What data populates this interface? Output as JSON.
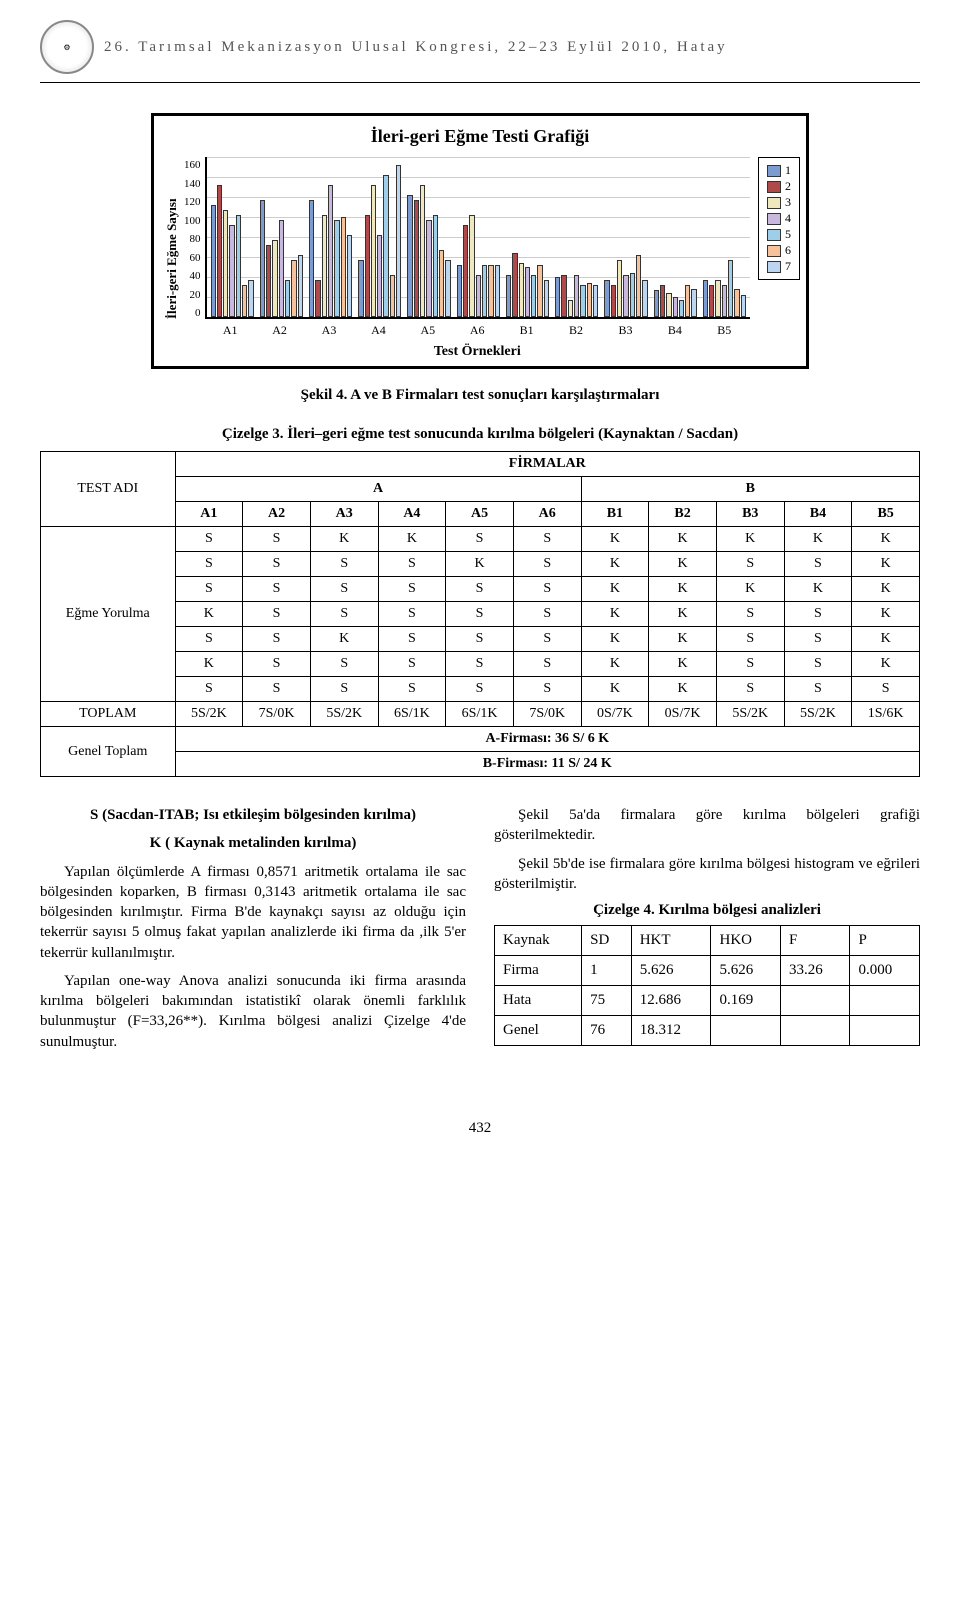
{
  "header": {
    "title": "26. Tarımsal Mekanizasyon Ulusal Kongresi, 22–23 Eylül 2010, Hatay"
  },
  "chart": {
    "type": "grouped-bar",
    "title": "İleri-geri Eğme Testi Grafiği",
    "ylabel": "İleri-geri Eğme Sayısı",
    "xlabel": "Test Örnekleri",
    "ylim": [
      0,
      160
    ],
    "ytick_step": 20,
    "yticks": [
      "160",
      "140",
      "120",
      "100",
      "80",
      "60",
      "40",
      "20",
      "0"
    ],
    "categories": [
      "A1",
      "A2",
      "A3",
      "A4",
      "A5",
      "A6",
      "B1",
      "B2",
      "B3",
      "B4",
      "B5"
    ],
    "series_labels": [
      "1",
      "2",
      "3",
      "4",
      "5",
      "6",
      "7"
    ],
    "series_colors": [
      "#7b9bd1",
      "#b04a4a",
      "#efe7bd",
      "#c8b8dd",
      "#9fcfe8",
      "#f5c29b",
      "#bcd6f2"
    ],
    "values": [
      [
        110,
        130,
        105,
        90,
        100,
        30,
        35
      ],
      [
        115,
        70,
        75,
        95,
        35,
        55,
        60
      ],
      [
        115,
        35,
        100,
        130,
        95,
        98,
        80
      ],
      [
        55,
        100,
        130,
        80,
        140,
        40,
        150
      ],
      [
        120,
        115,
        130,
        95,
        100,
        65,
        55
      ],
      [
        50,
        90,
        100,
        40,
        50,
        50,
        50
      ],
      [
        40,
        62,
        52,
        48,
        40,
        50,
        35
      ],
      [
        38,
        40,
        15,
        40,
        30,
        32,
        30
      ],
      [
        35,
        30,
        55,
        40,
        42,
        60,
        35
      ],
      [
        25,
        30,
        22,
        18,
        15,
        30,
        26
      ],
      [
        35,
        30,
        35,
        30,
        55,
        26,
        20
      ]
    ],
    "grid_color": "#cccccc",
    "background_color": "#ffffff",
    "border_color": "#000000"
  },
  "figure_caption": "Şekil 4. A ve B Firmaları test sonuçları karşılaştırmaları",
  "table_caption": "Çizelge 3. İleri–geri eğme test sonucunda kırılma bölgeleri (Kaynaktan / Sacdan)",
  "main_table": {
    "top_header": "FİRMALAR",
    "group_headers": [
      "A",
      "B"
    ],
    "row_label": "TEST ADI",
    "cols": [
      "A1",
      "A2",
      "A3",
      "A4",
      "A5",
      "A6",
      "B1",
      "B2",
      "B3",
      "B4",
      "B5"
    ],
    "row_group_label": "Eğme Yorulma",
    "rows": [
      [
        "S",
        "S",
        "K",
        "K",
        "S",
        "S",
        "K",
        "K",
        "K",
        "K",
        "K"
      ],
      [
        "S",
        "S",
        "S",
        "S",
        "K",
        "S",
        "K",
        "K",
        "S",
        "S",
        "K"
      ],
      [
        "S",
        "S",
        "S",
        "S",
        "S",
        "S",
        "K",
        "K",
        "K",
        "K",
        "K"
      ],
      [
        "K",
        "S",
        "S",
        "S",
        "S",
        "S",
        "K",
        "K",
        "S",
        "S",
        "K"
      ],
      [
        "S",
        "S",
        "K",
        "S",
        "S",
        "S",
        "K",
        "K",
        "S",
        "S",
        "K"
      ],
      [
        "K",
        "S",
        "S",
        "S",
        "S",
        "S",
        "K",
        "K",
        "S",
        "S",
        "K"
      ],
      [
        "S",
        "S",
        "S",
        "S",
        "S",
        "S",
        "K",
        "K",
        "S",
        "S",
        "S"
      ]
    ],
    "toplam_label": "TOPLAM",
    "toplam": [
      "5S/2K",
      "7S/0K",
      "5S/2K",
      "6S/1K",
      "6S/1K",
      "7S/0K",
      "0S/7K",
      "0S/7K",
      "5S/2K",
      "5S/2K",
      "1S/6K"
    ],
    "genel_label": "Genel Toplam",
    "genel_a": "A-Firması: 36 S/ 6 K",
    "genel_b": "B-Firması: 11 S/ 24 K"
  },
  "left_col": {
    "head1": "S (Sacdan-ITAB; Isı etkileşim bölgesinden kırılma)",
    "head2": "K ( Kaynak metalinden kırılma)",
    "p1": "Yapılan ölçümlerde A firması 0,8571 aritmetik ortalama ile sac bölgesinden koparken, B firması 0,3143 aritmetik ortalama ile sac bölgesinden kırılmıştır. Firma B'de kaynakçı sayısı az olduğu için tekerrür sayısı 5 olmuş fakat yapılan analizlerde iki firma da ,ilk 5'er tekerrür kullanılmıştır.",
    "p2": "Yapılan one-way Anova analizi sonucunda iki firma arasında kırılma bölgeleri bakımından istatistikî olarak önemli farklılık bulunmuştur (F=33,26**). Kırılma bölgesi analizi Çizelge 4'de sunulmuştur."
  },
  "right_col": {
    "p1": "Şekil 5a'da firmalara göre kırılma bölgeleri grafiği gösterilmektedir.",
    "p2": "Şekil 5b'de ise firmalara göre kırılma bölgesi histogram ve eğrileri gösterilmiştir.",
    "small_caption": "Çizelge 4. Kırılma bölgesi analizleri",
    "small_headers": [
      "Kaynak",
      "SD",
      "HKT",
      "HKO",
      "F",
      "P"
    ],
    "small_rows": [
      [
        "Firma",
        "1",
        "5.626",
        "5.626",
        "33.26",
        "0.000"
      ],
      [
        "Hata",
        "75",
        "12.686",
        "0.169",
        "",
        ""
      ],
      [
        "Genel",
        "76",
        "18.312",
        "",
        "",
        ""
      ]
    ]
  },
  "page_number": "432"
}
